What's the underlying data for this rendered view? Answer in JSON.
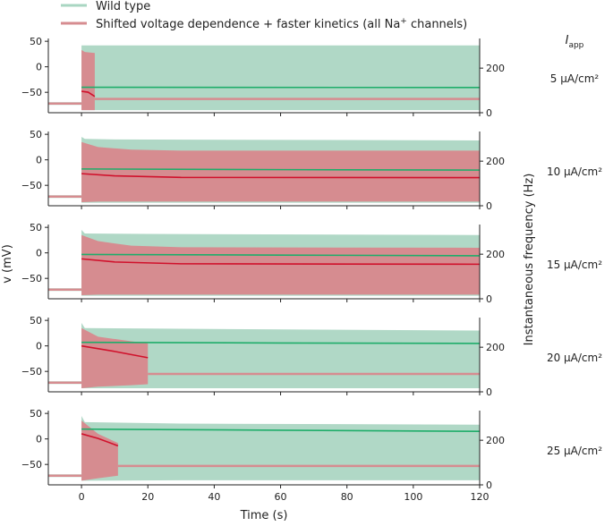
{
  "chart_data": {
    "type": "area",
    "legend": {
      "placement": "top-left",
      "entries": [
        {
          "label": "Wild type",
          "color": "#a9d6c2"
        },
        {
          "label": "Shifted voltage dependence + faster kinetics (all Na",
          "superscript": "+",
          "label_tail": " channels)",
          "color": "#d68c90"
        }
      ]
    },
    "xlabel": "Time (s)",
    "ylabel_left": "v (mV)",
    "ylabel_right": "Instantaneous frequency (Hz)",
    "row_header": {
      "main": "I",
      "sub": "app"
    },
    "xlim": [
      -10,
      120
    ],
    "xticks": [
      0,
      20,
      40,
      60,
      80,
      100,
      120
    ],
    "ylim_left": [
      -90,
      52
    ],
    "yticks_left": [
      -50,
      0,
      50
    ],
    "ylim_right": [
      0,
      325
    ],
    "yticks_right": [
      0,
      200
    ],
    "colors": {
      "wt_band": "#b0d8c6",
      "mut_band": "#d68c90",
      "wt_freq": "#1fad6a",
      "mut_freq": "#d0112b"
    },
    "panels": [
      {
        "label": "5 μA/cm²",
        "rest_before": -72,
        "wt_band": {
          "t": [
            0,
            120
          ],
          "vmax": [
            42,
            42
          ],
          "vmin": [
            -85,
            -85
          ]
        },
        "mut_band": {
          "t": [
            0,
            1,
            4
          ],
          "vmax": [
            33,
            29,
            27
          ],
          "vmin": [
            -85,
            -85,
            -85
          ]
        },
        "mut_rest_after": -63,
        "wt_freq": {
          "t": [
            0,
            120
          ],
          "hz": [
            114,
            113
          ]
        },
        "mut_freq": {
          "t": [
            0,
            2,
            4
          ],
          "hz": [
            96,
            92,
            73
          ]
        }
      },
      {
        "label": "10 μA/cm²",
        "rest_before": -72,
        "wt_band": {
          "t": [
            0,
            1,
            10,
            120
          ],
          "vmax": [
            45,
            41,
            40,
            38
          ],
          "vmin": [
            -84,
            -84,
            -84,
            -84
          ]
        },
        "mut_band": {
          "t": [
            0,
            5,
            15,
            30,
            120
          ],
          "vmax": [
            35,
            25,
            20,
            18,
            18
          ],
          "vmin": [
            -83,
            -82,
            -82,
            -82,
            -82
          ]
        },
        "mut_rest_after": null,
        "wt_freq": {
          "t": [
            0,
            60,
            120
          ],
          "hz": [
            165,
            162,
            160
          ]
        },
        "mut_freq": {
          "t": [
            0,
            10,
            30,
            120
          ],
          "hz": [
            144,
            134,
            127,
            126
          ]
        }
      },
      {
        "label": "15 μA/cm²",
        "rest_before": -72,
        "wt_band": {
          "t": [
            0,
            1,
            20,
            120
          ],
          "vmax": [
            45,
            38,
            37,
            35
          ],
          "vmin": [
            -84,
            -84,
            -84,
            -84
          ]
        },
        "mut_band": {
          "t": [
            0,
            5,
            15,
            30,
            120
          ],
          "vmax": [
            35,
            23,
            14,
            11,
            10
          ],
          "vmin": [
            -83,
            -82,
            -82,
            -82,
            -82
          ]
        },
        "mut_rest_after": null,
        "wt_freq": {
          "t": [
            0,
            60,
            120
          ],
          "hz": [
            199,
            196,
            193
          ]
        },
        "mut_freq": {
          "t": [
            0,
            10,
            30,
            120
          ],
          "hz": [
            179,
            165,
            157,
            155
          ]
        }
      },
      {
        "label": "20 μA/cm²",
        "rest_before": -72,
        "wt_band": {
          "t": [
            0,
            1,
            20,
            120
          ],
          "vmax": [
            45,
            35,
            34,
            30
          ],
          "vmin": [
            -83,
            -83,
            -83,
            -83
          ]
        },
        "mut_band": {
          "t": [
            0,
            5,
            15,
            20
          ],
          "vmax": [
            35,
            18,
            9,
            5
          ],
          "vmin": [
            -83,
            -80,
            -77,
            -75
          ]
        },
        "mut_rest_after": -55,
        "wt_freq": {
          "t": [
            0,
            60,
            120
          ],
          "hz": [
            222,
            219,
            217
          ]
        },
        "mut_freq": {
          "t": [
            0,
            10,
            20
          ],
          "hz": [
            206,
            181,
            153
          ]
        }
      },
      {
        "label": "25 μA/cm²",
        "rest_before": -72,
        "wt_band": {
          "t": [
            0,
            1,
            30,
            120
          ],
          "vmax": [
            45,
            33,
            30,
            28
          ],
          "vmin": [
            -82,
            -82,
            -81,
            -81
          ]
        },
        "mut_band": {
          "t": [
            0,
            5,
            11
          ],
          "vmax": [
            36,
            10,
            -8
          ],
          "vmin": [
            -82,
            -77,
            -72
          ]
        },
        "mut_rest_after": -53,
        "wt_freq": {
          "t": [
            0,
            60,
            120
          ],
          "hz": [
            250,
            245,
            240
          ]
        },
        "mut_freq": {
          "t": [
            0,
            5,
            11
          ],
          "hz": [
            229,
            208,
            175
          ]
        }
      }
    ]
  }
}
